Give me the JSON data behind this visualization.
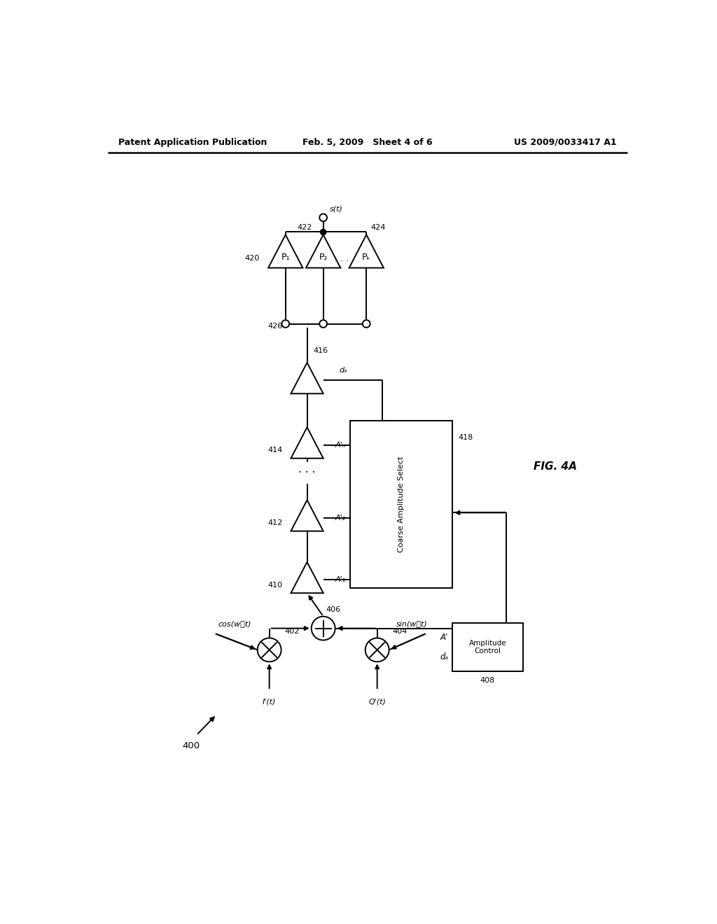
{
  "header_left": "Patent Application Publication",
  "header_mid": "Feb. 5, 2009   Sheet 4 of 6",
  "header_right": "US 2009/0033417 A1",
  "fig_label": "FIG. 4A",
  "bg_color": "#ffffff",
  "text_cos": "cos(wⲟt)",
  "text_sin": "sin(wⲟt)",
  "text_It": "I'(t)",
  "text_Qt": "Q'(t)",
  "text_st": "s(t)",
  "text_dA": "dₐ",
  "text_A1": "A'₁",
  "text_A2": "A'₂",
  "text_AN": "A'ₙ",
  "text_Ap": "A'",
  "text_coarse": "Coarse Amplitude Select",
  "text_amplitude": "Amplitude\nControl",
  "text_P1": "P₁",
  "text_P2": "P₂",
  "text_Pk": "Pₖ",
  "label_400": "400",
  "label_402": "402",
  "label_404": "404",
  "label_406": "406",
  "label_408": "408",
  "label_410": "410",
  "label_412": "412",
  "label_414": "414",
  "label_416": "416",
  "label_418": "418",
  "label_420": "420",
  "label_422": "422",
  "label_424": "424",
  "label_426": "426"
}
